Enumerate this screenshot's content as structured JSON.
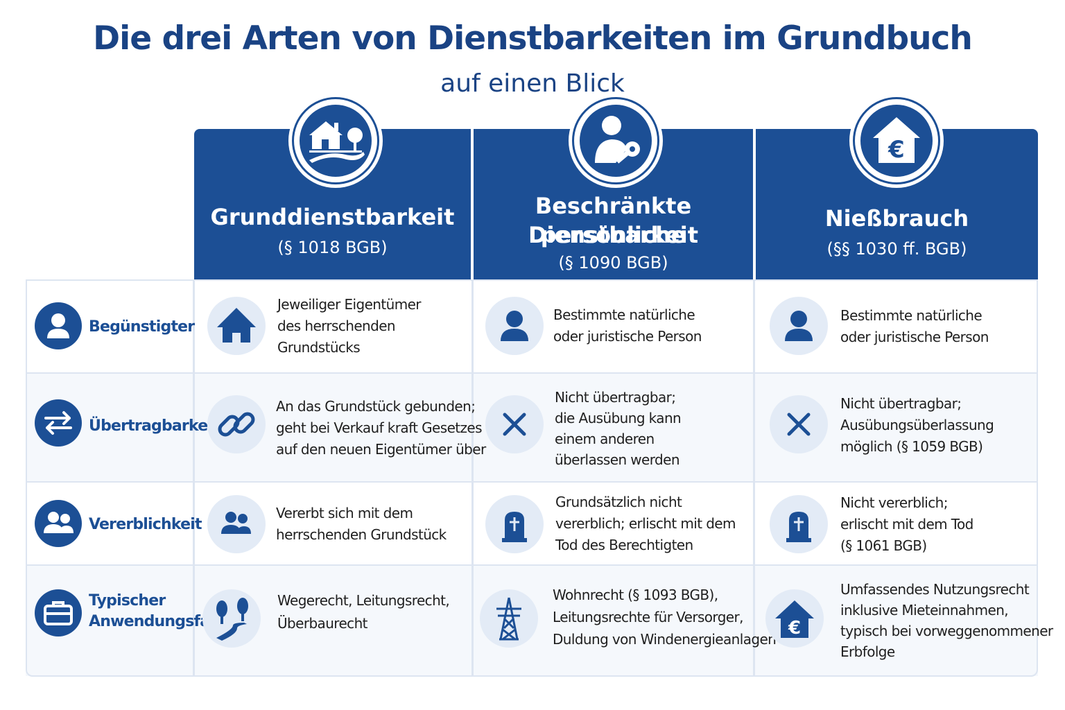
{
  "header": {
    "title": "Die drei Arten von Dienstbarkeiten im Grundbuch",
    "subtitle": "auf einen Blick"
  },
  "colors": {
    "primary": "#1c4f95",
    "icon_bg": "#e3ebf6",
    "grid_line": "#dde5f1"
  },
  "columns": [
    {
      "name_lines": [
        "Grunddienstbarkeit"
      ],
      "ref": "(§ 1018 BGB)",
      "icon": "house-landscape-icon"
    },
    {
      "name_lines": [
        "Beschränkte persönliche",
        "Dienstbarkeit"
      ],
      "ref": "(§ 1090 BGB)",
      "icon": "person-key-icon"
    },
    {
      "name_lines": [
        "Nießbrauch"
      ],
      "ref": "(§§ 1030 ff. BGB)",
      "icon": "euro-house-icon"
    }
  ],
  "rows": [
    {
      "label_lines": [
        "Begünstigter"
      ],
      "icon": "person-icon",
      "cells": [
        {
          "icon": "house-icon",
          "lines": [
            "Jeweiliger Eigentümer",
            "des herrschenden",
            "Grundstücks"
          ]
        },
        {
          "icon": "person-icon",
          "lines": [
            "Bestimmte natürliche",
            "oder juristische Person"
          ]
        },
        {
          "icon": "person-icon",
          "lines": [
            "Bestimmte natürliche",
            "oder juristische Person"
          ]
        }
      ]
    },
    {
      "label_lines": [
        "Übertragbarkeit"
      ],
      "icon": "arrows-swap-icon",
      "cells": [
        {
          "icon": "chain-link-icon",
          "lines": [
            "An das Grundstück gebunden;",
            "geht bei Verkauf kraft Gesetzes",
            "auf den neuen Eigentümer über"
          ]
        },
        {
          "icon": "cross-icon",
          "lines": [
            "Nicht übertragbar;",
            "die Ausübung kann",
            "einem anderen",
            "überlassen werden"
          ]
        },
        {
          "icon": "cross-icon",
          "lines": [
            "Nicht übertragbar;",
            "Ausübungsüberlassung",
            "möglich (§ 1059 BGB)"
          ]
        }
      ]
    },
    {
      "label_lines": [
        "Vererblichkeit"
      ],
      "icon": "people-icon",
      "cells": [
        {
          "icon": "people-icon",
          "lines": [
            "Vererbt sich mit dem",
            "herrschenden Grundstück"
          ]
        },
        {
          "icon": "gravestone-icon",
          "lines": [
            "Grundsätzlich nicht",
            "vererblich; erlischt mit dem",
            "Tod des Berechtigten"
          ]
        },
        {
          "icon": "gravestone-icon",
          "lines": [
            "Nicht vererblich;",
            "erlischt mit dem Tod",
            "(§ 1061 BGB)"
          ]
        }
      ]
    },
    {
      "label_lines": [
        "Typischer",
        "Anwendungsfall"
      ],
      "icon": "briefcase-icon",
      "cells": [
        {
          "icon": "trees-path-icon",
          "lines": [
            "Wegerecht, Leitungsrecht,",
            "Überbaurecht"
          ]
        },
        {
          "icon": "power-pylon-icon",
          "lines": [
            "Wohnrecht (§ 1093 BGB),",
            "Leitungsrechte für Versorger,",
            "Duldung von Windenergieanlagen"
          ]
        },
        {
          "icon": "euro-house-icon",
          "lines": [
            "Umfassendes Nutzungsrecht",
            "inklusive Mieteinnahmen,",
            "typisch bei vorweggenommener",
            "Erbfolge"
          ]
        }
      ]
    }
  ]
}
